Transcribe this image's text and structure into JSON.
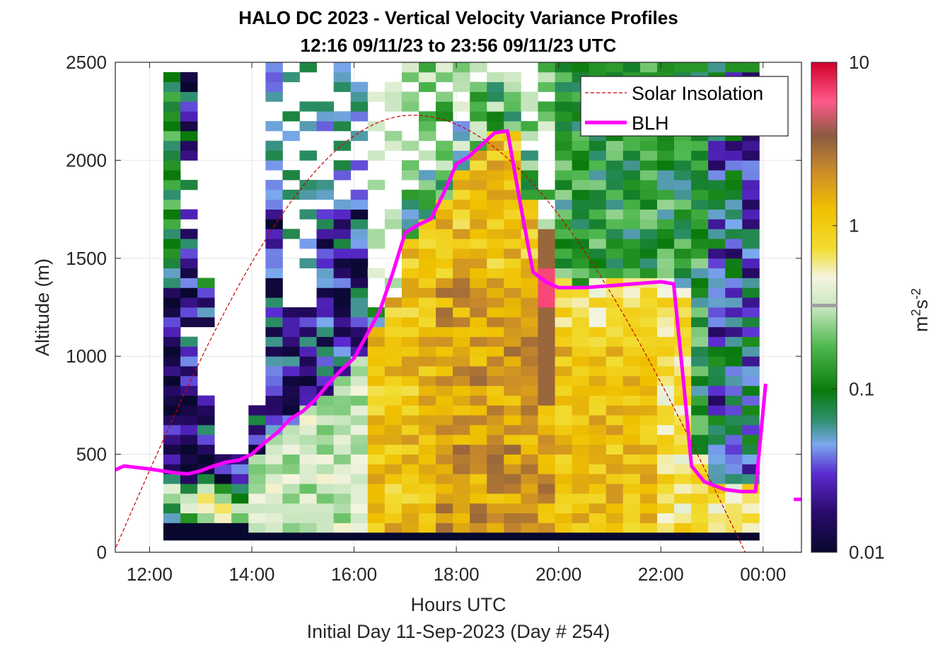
{
  "chart_data": {
    "type": "heatmap",
    "title": "HALO DC 2023 - Vertical Velocity Variance Profiles",
    "subtitle": "12:16 09/11/23 to 23:56 09/11/23  UTC",
    "xlabel": "Hours UTC",
    "xlabel2": "Initial Day 11-Sep-2023 (Day # 254)",
    "ylabel": "Altitude (m)",
    "xlim": [
      11.33,
      24.75
    ],
    "ylim": [
      0,
      2500
    ],
    "x_ticks": [
      12,
      14,
      16,
      18,
      20,
      22,
      24
    ],
    "x_tick_labels": [
      "12:00",
      "14:00",
      "16:00",
      "18:00",
      "20:00",
      "22:00",
      "00:00"
    ],
    "y_ticks": [
      0,
      500,
      1000,
      1500,
      2000,
      2500
    ],
    "y_tick_labels": [
      "0",
      "500",
      "1000",
      "1500",
      "2000",
      "2500"
    ],
    "colorbar": {
      "label": "m2s-2",
      "scale": "log",
      "range": [
        0.01,
        10
      ],
      "tick_values": [
        0.01,
        0.1,
        1,
        10
      ],
      "tick_labels": [
        "0.01",
        "0.1",
        "1",
        "10"
      ]
    },
    "grid": true,
    "legend_position": "top-right",
    "legend": [
      {
        "name": "Solar Insolation",
        "color": "#cc0000",
        "style": "dashed"
      },
      {
        "name": "BLH",
        "color": "#ff00ff",
        "style": "solid"
      }
    ],
    "variance_grid": {
      "x_start_hour": 12.27,
      "column_width_hours": 0.333,
      "row_bottom_m": 100,
      "row_height_m": 50,
      "note_values": "log10(variance) per cell, column profiles from lowest altitude upward; null = no data",
      "columns": [
        [
          -2,
          -1.3,
          -1.1,
          -0.6,
          -0.4,
          -1.2,
          -1.8,
          -1.6,
          -1.9,
          -1.7,
          -1.5,
          -1.8,
          -2,
          -1.9,
          -1.8,
          -2,
          -1.7,
          -1.9,
          -2,
          -1.8,
          -1.6,
          -1.5,
          -1.9,
          -2,
          -1.8,
          -1.2,
          -1.3,
          -1.1,
          -0.9,
          -1,
          -1.2,
          -0.8,
          -1,
          -0.7,
          -1.2,
          -0.8,
          -1,
          -0.9,
          -1.1,
          -1.2,
          -0.7,
          -1,
          -0.9,
          -1.1,
          -0.8,
          -1.2,
          -1
        ],
        [
          -2,
          -0.9,
          -0.4,
          -0.5,
          -1.1,
          -1.8,
          -2,
          -1.9,
          -2,
          -1.8,
          -1.6,
          -1.8,
          -1.9,
          -2,
          -1.7,
          -1.5,
          -1.8,
          -1.4,
          -1.6,
          -1.2,
          null,
          -1.9,
          -1.5,
          -1.7,
          -2,
          -1.4,
          -1.9,
          -1.7,
          -1.5,
          -1.2,
          -1.8,
          null,
          -1.6,
          null,
          null,
          -1.1,
          null,
          null,
          -1.7,
          -1.8,
          -1,
          -1.9,
          -1.6,
          -1.5,
          -1.2,
          -2,
          -1.9
        ],
        [
          -2,
          -0.6,
          -0.3,
          -0.2,
          -0.5,
          -1.1,
          -1.9,
          -2,
          -1.8,
          -1.5,
          -1.2,
          -1.9,
          -1.8,
          -1.6,
          null,
          null,
          null,
          null,
          null,
          null,
          null,
          -1.9,
          -1.3,
          -1.8,
          -1.5,
          -0.9,
          null,
          null,
          null,
          null,
          null,
          null,
          null,
          null,
          null,
          null,
          null,
          null,
          null,
          null,
          null,
          null,
          null,
          null,
          null,
          null,
          null
        ],
        [
          -2,
          -0.3,
          -0.2,
          -0.6,
          -0.9,
          -2,
          -1.5,
          -1.8,
          null,
          null,
          null,
          null,
          null,
          null,
          null,
          null,
          null,
          null,
          null,
          null,
          null,
          null,
          null,
          null,
          null,
          null,
          null,
          null,
          null,
          null,
          null,
          null,
          null,
          null,
          null,
          null,
          null,
          null,
          null,
          null,
          null,
          null,
          null,
          null,
          null,
          null,
          null
        ],
        [
          -2,
          -0.7,
          -0.5,
          -1,
          -1.2,
          -1.6,
          -1.4,
          -1.7,
          null,
          null,
          null,
          null,
          null,
          null,
          null,
          null,
          null,
          null,
          null,
          null,
          null,
          null,
          null,
          null,
          null,
          null,
          null,
          null,
          null,
          null,
          null,
          null,
          null,
          null,
          null,
          null,
          null,
          null,
          null,
          null,
          null,
          null,
          null,
          null,
          null,
          null,
          null
        ]
      ]
    },
    "series": [
      {
        "name": "BLH",
        "x": [
          11.33,
          11.5,
          12.0,
          12.5,
          12.75,
          13.0,
          13.25,
          13.5,
          13.75,
          14.0,
          14.25,
          14.5,
          14.75,
          15.0,
          15.25,
          15.5,
          15.75,
          16.0,
          16.25,
          16.5,
          16.75,
          17.0,
          17.25,
          17.5,
          17.75,
          18.0,
          18.25,
          18.5,
          18.75,
          19.0,
          19.25,
          19.5,
          19.75,
          20.0,
          20.25,
          20.5,
          21.0,
          21.5,
          22.0,
          22.25,
          22.45,
          22.6,
          22.85,
          23.25,
          23.55,
          23.85,
          24.05
        ],
        "values": [
          420,
          440,
          425,
          405,
          400,
          415,
          440,
          460,
          470,
          500,
          560,
          610,
          680,
          720,
          780,
          860,
          930,
          990,
          1110,
          1230,
          1420,
          1630,
          1670,
          1700,
          1830,
          1980,
          2020,
          2080,
          2140,
          2150,
          1780,
          1430,
          1380,
          1350,
          1350,
          1350,
          1360,
          1370,
          1380,
          1370,
          850,
          440,
          360,
          320,
          310,
          310,
          860
        ]
      },
      {
        "name": "BLH_tail",
        "x": [
          24.6,
          24.75
        ],
        "values": [
          270,
          270
        ]
      },
      {
        "name": "Solar Insolation",
        "shape": "cosine",
        "sunrise_hour": 11.3,
        "peak_hour": 17.15,
        "sunset_hour": 23.65,
        "peak_altitude_equiv": 2230,
        "baseline_altitude_equiv": 0
      }
    ]
  }
}
